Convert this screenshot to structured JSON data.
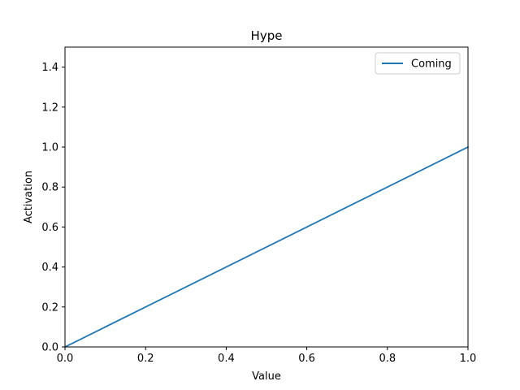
{
  "chart_data": {
    "type": "line",
    "title": "Hype",
    "xlabel": "Value",
    "ylabel": "Activation",
    "xlim": [
      0.0,
      1.0
    ],
    "ylim": [
      0.0,
      1.5
    ],
    "xticks": [
      0.0,
      0.2,
      0.4,
      0.6,
      0.8,
      1.0
    ],
    "xtick_labels": [
      "0.0",
      "0.2",
      "0.4",
      "0.6",
      "0.8",
      "1.0"
    ],
    "yticks": [
      0.0,
      0.2,
      0.4,
      0.6,
      0.8,
      1.0,
      1.2,
      1.4
    ],
    "ytick_labels": [
      "0.0",
      "0.2",
      "0.4",
      "0.6",
      "0.8",
      "1.0",
      "1.2",
      "1.4"
    ],
    "grid": false,
    "legend_position": "top-right",
    "series": [
      {
        "name": "Coming",
        "color": "#1f77b4",
        "x": [
          0.0,
          1.0
        ],
        "y": [
          0.0,
          1.0
        ]
      }
    ]
  }
}
